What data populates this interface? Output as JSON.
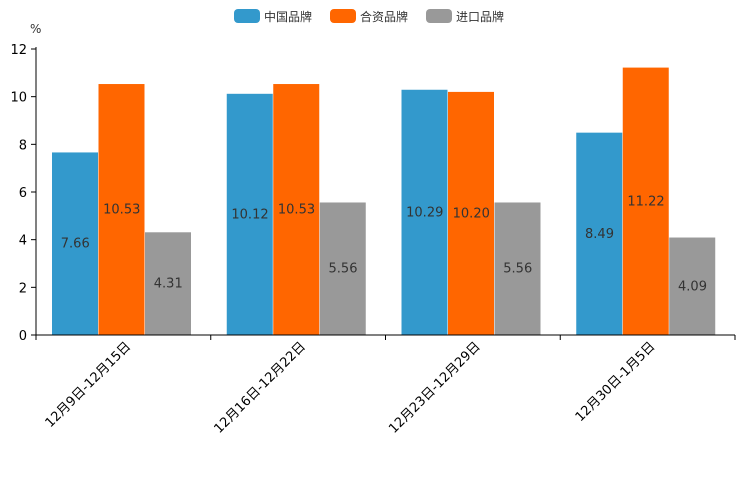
{
  "chart_data": {
    "type": "bar",
    "title": "",
    "xlabel": "",
    "ylabel": "%",
    "ylim": [
      0,
      12
    ],
    "yticks": [
      0,
      2,
      4,
      6,
      8,
      10,
      12
    ],
    "grid": false,
    "legend_position": "top-center",
    "categories": [
      "12月9日-12月15日",
      "12月16日-12月22日",
      "12月23日-12月29日",
      "12月30日-1月5日"
    ],
    "series": [
      {
        "name": "中国品牌",
        "color": "#3399cc",
        "values": [
          7.66,
          10.12,
          10.29,
          8.49
        ],
        "labels": [
          "7.66",
          "10.12",
          "10.29",
          "8.49"
        ]
      },
      {
        "name": "合资品牌",
        "color": "#ff6600",
        "values": [
          10.53,
          10.53,
          10.2,
          11.22
        ],
        "labels": [
          "10.53",
          "10.53",
          "10.20",
          "11.22"
        ]
      },
      {
        "name": "进口品牌",
        "color": "#999999",
        "values": [
          4.31,
          5.56,
          5.56,
          4.09
        ],
        "labels": [
          "4.31",
          "5.56",
          "5.56",
          "4.09"
        ]
      }
    ]
  }
}
